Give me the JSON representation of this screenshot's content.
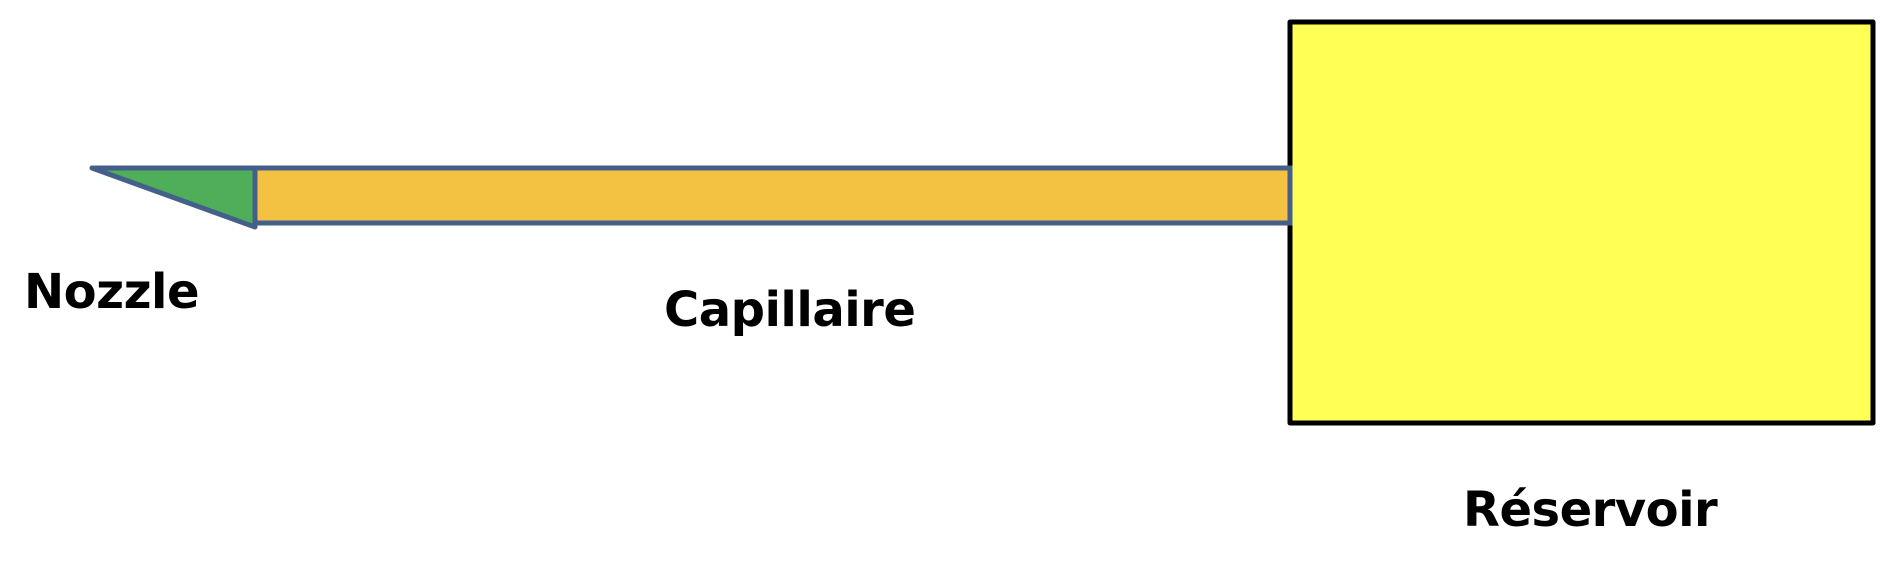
{
  "labels": {
    "nozzle": "Nozzle",
    "capillaire": "Capillaire",
    "reservoir": "Réservoir"
  },
  "colors": {
    "nozzle_fill": "#4EAE5A",
    "capillaire_fill": "#F4C242",
    "reservoir_fill": "#FFFF55",
    "outline_blue": "#44608A",
    "outline_black": "#000000"
  }
}
